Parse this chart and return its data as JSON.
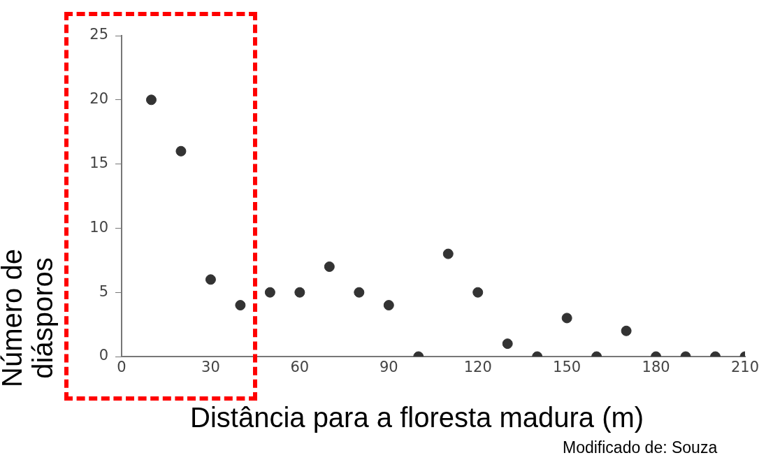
{
  "chart_data": {
    "type": "scatter",
    "xlabel": "Distância para a floresta madura (m)",
    "ylabel": "Número de diásporos",
    "annotations": [
      "Modificado de: Souza"
    ],
    "x": [
      10,
      20,
      30,
      40,
      50,
      60,
      70,
      80,
      90,
      100,
      110,
      120,
      130,
      140,
      150,
      160,
      170,
      180,
      190,
      200,
      210
    ],
    "values": [
      20,
      16,
      6,
      4,
      5,
      5,
      7,
      5,
      4,
      0,
      8,
      5,
      1,
      0,
      3,
      0,
      2,
      0,
      0,
      0,
      0
    ],
    "color": "#333333",
    "marker": "circle",
    "xlim": [
      0,
      210
    ],
    "xticks": [
      0,
      30,
      60,
      90,
      120,
      150,
      180,
      210
    ],
    "ylim": [
      0,
      25
    ],
    "yticks": [
      0,
      5,
      10,
      15,
      20,
      25
    ]
  }
}
